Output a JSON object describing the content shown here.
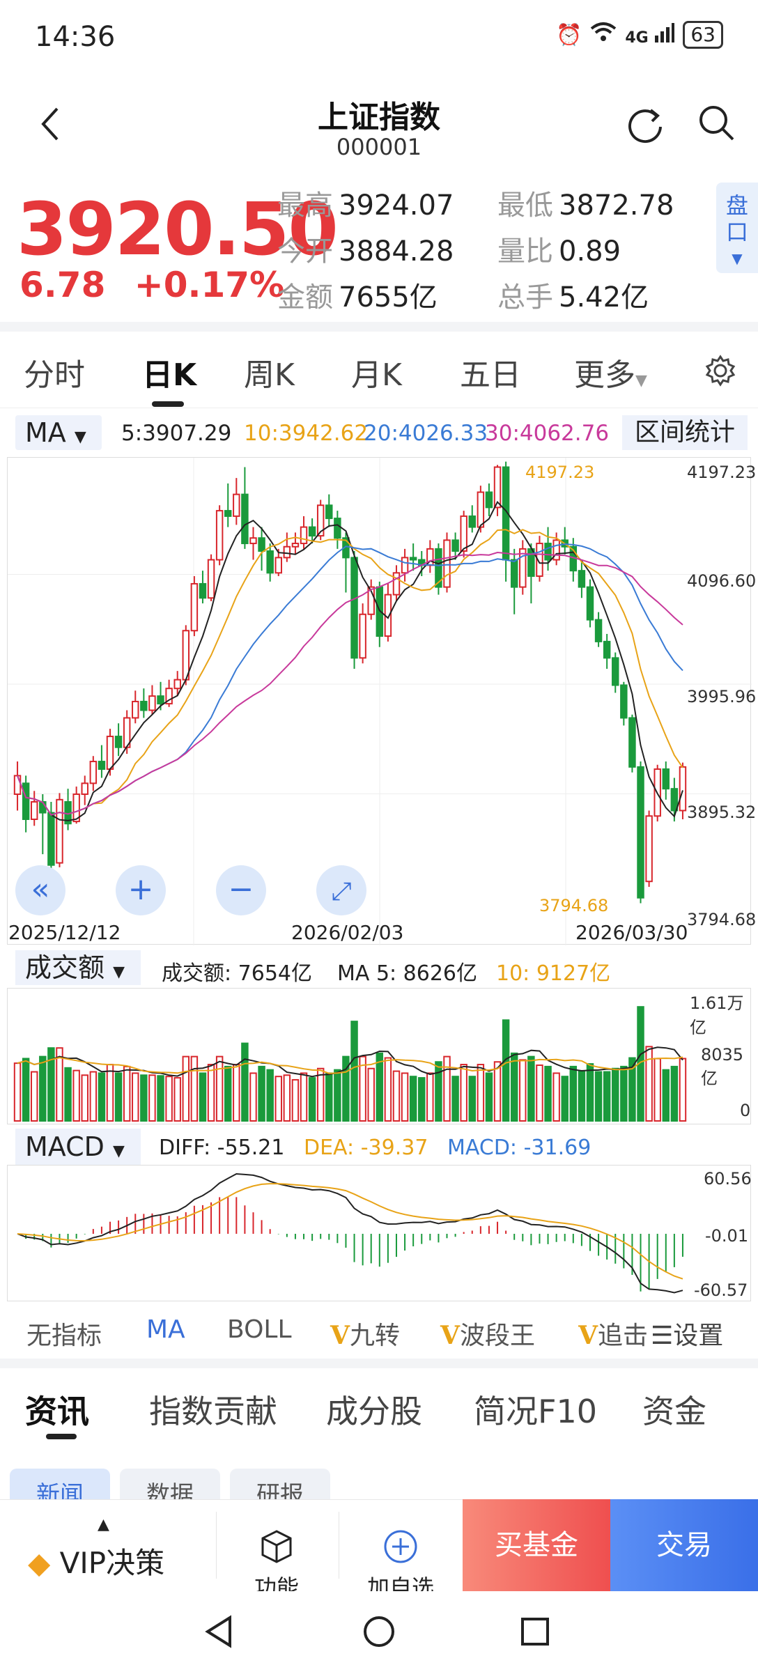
{
  "status": {
    "time": "14:36",
    "signal": "4G",
    "battery": "63"
  },
  "header": {
    "title": "上证指数",
    "code": "000001"
  },
  "quote": {
    "price": "3920.50",
    "change": "6.78",
    "change_pct": "+0.17%",
    "high_label": "最高",
    "high": "3924.07",
    "low_label": "最低",
    "low": "3872.78",
    "open_label": "今开",
    "open": "3884.28",
    "ratio_label": "量比",
    "ratio": "0.89",
    "amount_label": "金额",
    "amount": "7655亿",
    "hands_label": "总手",
    "hands": "5.42亿",
    "pankou": "盘口"
  },
  "tabs": [
    "分时",
    "日K",
    "周K",
    "月K",
    "五日",
    "更多"
  ],
  "ma": {
    "dropdown": "MA",
    "ma5": "5:3907.29",
    "ma10": "10:3942.62",
    "ma20": "20:4026.33",
    "ma30": "30:4062.76",
    "range_button": "区间统计",
    "colors": {
      "ma5": "#222222",
      "ma10": "#e8a317",
      "ma20": "#3a7bd5",
      "ma30": "#c8399b",
      "up": "#d8262c",
      "down": "#1a9a3c"
    }
  },
  "kline": {
    "y_ticks": [
      "4197.23",
      "4096.60",
      "3995.96",
      "3895.32",
      "3794.68"
    ],
    "x_ticks": [
      "2025/12/12",
      "2026/02/03",
      "2026/03/30"
    ],
    "max_label": "4197.23",
    "min_label": "3794.68"
  },
  "volume": {
    "dropdown": "成交额",
    "text": "成交额: 7654亿",
    "ma5": "MA 5: 8626亿",
    "ma10": "10: 9127亿",
    "y_ticks": [
      "1.61万亿",
      "8035亿",
      "0"
    ]
  },
  "macd": {
    "dropdown": "MACD",
    "diff": "DIFF: -55.21",
    "dea": "DEA: -39.37",
    "macd": "MACD: -31.69",
    "y_ticks": [
      "60.56",
      "-0.01",
      "-60.57"
    ]
  },
  "indicators": {
    "none": "无指标",
    "ma": "MA",
    "boll": "BOLL",
    "v1": "九转",
    "v2": "波段王",
    "v3": "追击",
    "settings": "设置",
    "v_mark": "V"
  },
  "info_tabs": [
    "资讯",
    "指数贡献",
    "成分股",
    "简况F10",
    "资金"
  ],
  "chips": [
    "新闻",
    "数据",
    "研报"
  ],
  "bottom": {
    "vip": "VIP决策",
    "func": "功能",
    "add": "加自选",
    "buy_fund": "买基金",
    "trade": "交易"
  },
  "chart_data": {
    "type": "candlestick",
    "candles": [
      [
        3895,
        3912,
        3880,
        3925
      ],
      [
        3905,
        3872,
        3860,
        3912
      ],
      [
        3872,
        3888,
        3866,
        3898
      ],
      [
        3888,
        3878,
        3840,
        3895
      ],
      [
        3878,
        3830,
        3820,
        3888
      ],
      [
        3832,
        3890,
        3828,
        3896
      ],
      [
        3888,
        3868,
        3862,
        3900
      ],
      [
        3870,
        3895,
        3868,
        3902
      ],
      [
        3895,
        3905,
        3885,
        3912
      ],
      [
        3905,
        3925,
        3898,
        3930
      ],
      [
        3925,
        3918,
        3910,
        3940
      ],
      [
        3918,
        3948,
        3912,
        3955
      ],
      [
        3948,
        3938,
        3930,
        3960
      ],
      [
        3938,
        3965,
        3932,
        3972
      ],
      [
        3965,
        3980,
        3960,
        3990
      ],
      [
        3980,
        3972,
        3965,
        3992
      ],
      [
        3972,
        3985,
        3968,
        3995
      ],
      [
        3985,
        3978,
        3972,
        3998
      ],
      [
        3978,
        3992,
        3975,
        4000
      ],
      [
        3992,
        4000,
        3985,
        4008
      ],
      [
        4000,
        4045,
        3995,
        4050
      ],
      [
        4045,
        4088,
        4040,
        4095
      ],
      [
        4088,
        4075,
        4070,
        4100
      ],
      [
        4075,
        4110,
        4072,
        4115
      ],
      [
        4110,
        4155,
        4105,
        4160
      ],
      [
        4155,
        4150,
        4140,
        4180
      ],
      [
        4150,
        4170,
        4142,
        4185
      ],
      [
        4170,
        4125,
        4120,
        4195
      ],
      [
        4125,
        4130,
        4110,
        4140
      ],
      [
        4130,
        4118,
        4100,
        4140
      ],
      [
        4118,
        4098,
        4090,
        4125
      ],
      [
        4098,
        4112,
        4095,
        4120
      ],
      [
        4112,
        4122,
        4108,
        4135
      ],
      [
        4122,
        4125,
        4115,
        4135
      ],
      [
        4125,
        4140,
        4120,
        4150
      ],
      [
        4140,
        4132,
        4125,
        4148
      ],
      [
        4132,
        4160,
        4128,
        4165
      ],
      [
        4160,
        4148,
        4140,
        4170
      ],
      [
        4148,
        4130,
        4120,
        4155
      ],
      [
        4130,
        4112,
        4080,
        4135
      ],
      [
        4112,
        4020,
        4010,
        4118
      ],
      [
        4020,
        4060,
        4015,
        4070
      ],
      [
        4060,
        4085,
        4055,
        4092
      ],
      [
        4085,
        4040,
        4030,
        4090
      ],
      [
        4040,
        4078,
        4035,
        4088
      ],
      [
        4078,
        4098,
        4072,
        4105
      ],
      [
        4098,
        4112,
        4090,
        4120
      ],
      [
        4112,
        4110,
        4100,
        4125
      ],
      [
        4110,
        4105,
        4095,
        4118
      ],
      [
        4105,
        4120,
        4098,
        4128
      ],
      [
        4120,
        4085,
        4078,
        4125
      ],
      [
        4085,
        4128,
        4080,
        4135
      ],
      [
        4128,
        4118,
        4110,
        4135
      ],
      [
        4118,
        4150,
        4112,
        4155
      ],
      [
        4150,
        4140,
        4135,
        4160
      ],
      [
        4140,
        4172,
        4135,
        4178
      ],
      [
        4172,
        4158,
        4150,
        4180
      ],
      [
        4158,
        4195,
        4150,
        4197
      ],
      [
        4195,
        4110,
        4090,
        4200
      ],
      [
        4110,
        4085,
        4060,
        4120
      ],
      [
        4085,
        4120,
        4078,
        4128
      ],
      [
        4120,
        4095,
        4070,
        4125
      ],
      [
        4095,
        4125,
        4090,
        4132
      ],
      [
        4125,
        4110,
        4100,
        4140
      ],
      [
        4110,
        4128,
        4105,
        4135
      ],
      [
        4128,
        4122,
        4115,
        4140
      ],
      [
        4122,
        4100,
        4090,
        4130
      ],
      [
        4100,
        4085,
        4075,
        4108
      ],
      [
        4085,
        4055,
        4048,
        4092
      ],
      [
        4055,
        4035,
        4030,
        4062
      ],
      [
        4035,
        4020,
        4010,
        4042
      ],
      [
        4020,
        3995,
        3988,
        4025
      ],
      [
        3995,
        3965,
        3958,
        3998
      ],
      [
        3965,
        3920,
        3915,
        3968
      ],
      [
        3920,
        3800,
        3795,
        3925
      ],
      [
        3815,
        3875,
        3810,
        3880
      ],
      [
        3875,
        3918,
        3870,
        3922
      ],
      [
        3918,
        3900,
        3890,
        3925
      ],
      [
        3900,
        3880,
        3870,
        3910
      ],
      [
        3880,
        3920,
        3872,
        3924
      ]
    ],
    "ylim": [
      3794.68,
      4197.23
    ]
  }
}
